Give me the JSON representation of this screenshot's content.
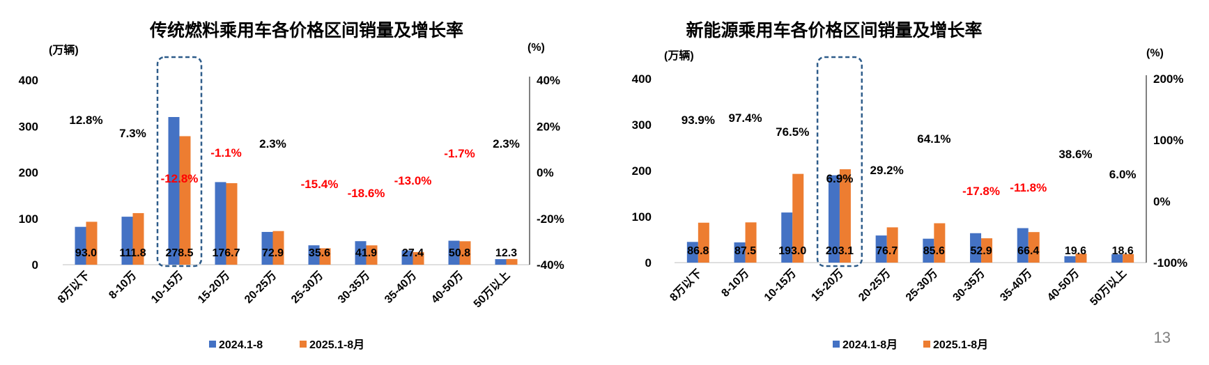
{
  "page_number": "13",
  "colors": {
    "series_2024": "#4472C4",
    "series_2025": "#ED7D31",
    "positive": "#000000",
    "negative": "#FF0000",
    "highlight_box": "#2E5C8A"
  },
  "chart_data": [
    {
      "type": "bar",
      "title": "传统燃料乘用车各价格区间销量及增长率",
      "ylabel": "(万辆)",
      "y2label": "(%)",
      "ylim": [
        0,
        400
      ],
      "yticks": [
        "0",
        "100",
        "200",
        "300",
        "400"
      ],
      "y2lim": [
        -40,
        40
      ],
      "y2ticks": [
        "-40%",
        "-20%",
        "0%",
        "20%",
        "40%"
      ],
      "categories": [
        "8万以下",
        "8-10万",
        "10-15万",
        "15-20万",
        "20-25万",
        "25-30万",
        "30-35万",
        "35-40万",
        "40-50万",
        "50万以上"
      ],
      "highlight_category_index": 2,
      "series": [
        {
          "name": "2024.1-8",
          "values": [
            82,
            104,
            320,
            179,
            71,
            42,
            51,
            31,
            52,
            12
          ]
        },
        {
          "name": "2025.1-8月",
          "values": [
            93.0,
            111.8,
            278.5,
            176.7,
            72.9,
            35.6,
            41.9,
            27.4,
            50.8,
            12.3
          ]
        }
      ],
      "data_labels": [
        "93.0",
        "111.8",
        "278.5",
        "176.7",
        "72.9",
        "35.6",
        "41.9",
        "27.4",
        "50.8",
        "12.3"
      ],
      "growth": [
        12.8,
        7.3,
        -12.8,
        -1.1,
        2.3,
        -15.4,
        -18.6,
        -13.0,
        -1.7,
        2.3
      ],
      "growth_labels": [
        "12.8%",
        "7.3%",
        "-12.8%",
        "-1.1%",
        "2.3%",
        "-15.4%",
        "-18.6%",
        "-13.0%",
        "-1.7%",
        "2.3%"
      ],
      "legend_position": "bottom"
    },
    {
      "type": "bar",
      "title": "新能源乘用车各价格区间销量及增长率",
      "ylabel": "(万辆)",
      "y2label": "(%)",
      "ylim": [
        0,
        400
      ],
      "yticks": [
        "0",
        "100",
        "200",
        "300",
        "400"
      ],
      "y2lim": [
        -100,
        200
      ],
      "y2ticks": [
        "-100%",
        "0%",
        "100%",
        "200%"
      ],
      "categories": [
        "8万以下",
        "8-10万",
        "10-15万",
        "15-20万",
        "20-25万",
        "25-30万",
        "30-35万",
        "35-40万",
        "40-50万",
        "50万以上"
      ],
      "highlight_category_index": 3,
      "series": [
        {
          "name": "2024.1-8月",
          "values": [
            45,
            44,
            109,
            190,
            59,
            52,
            64,
            75,
            14,
            18
          ]
        },
        {
          "name": "2025.1-8月",
          "values": [
            86.8,
            87.5,
            193.0,
            203.1,
            76.7,
            85.6,
            52.9,
            66.4,
            19.6,
            18.6
          ]
        }
      ],
      "data_labels": [
        "86.8",
        "87.5",
        "193.0",
        "203.1",
        "76.7",
        "85.6",
        "52.9",
        "66.4",
        "19.6",
        "18.6"
      ],
      "growth": [
        93.9,
        97.4,
        76.5,
        6.9,
        29.2,
        64.1,
        -17.8,
        -11.8,
        38.6,
        6.0
      ],
      "growth_labels": [
        "93.9%",
        "97.4%",
        "76.5%",
        "6.9%",
        "29.2%",
        "64.1%",
        "-17.8%",
        "-11.8%",
        "38.6%",
        "6.0%"
      ],
      "legend_position": "bottom"
    }
  ]
}
